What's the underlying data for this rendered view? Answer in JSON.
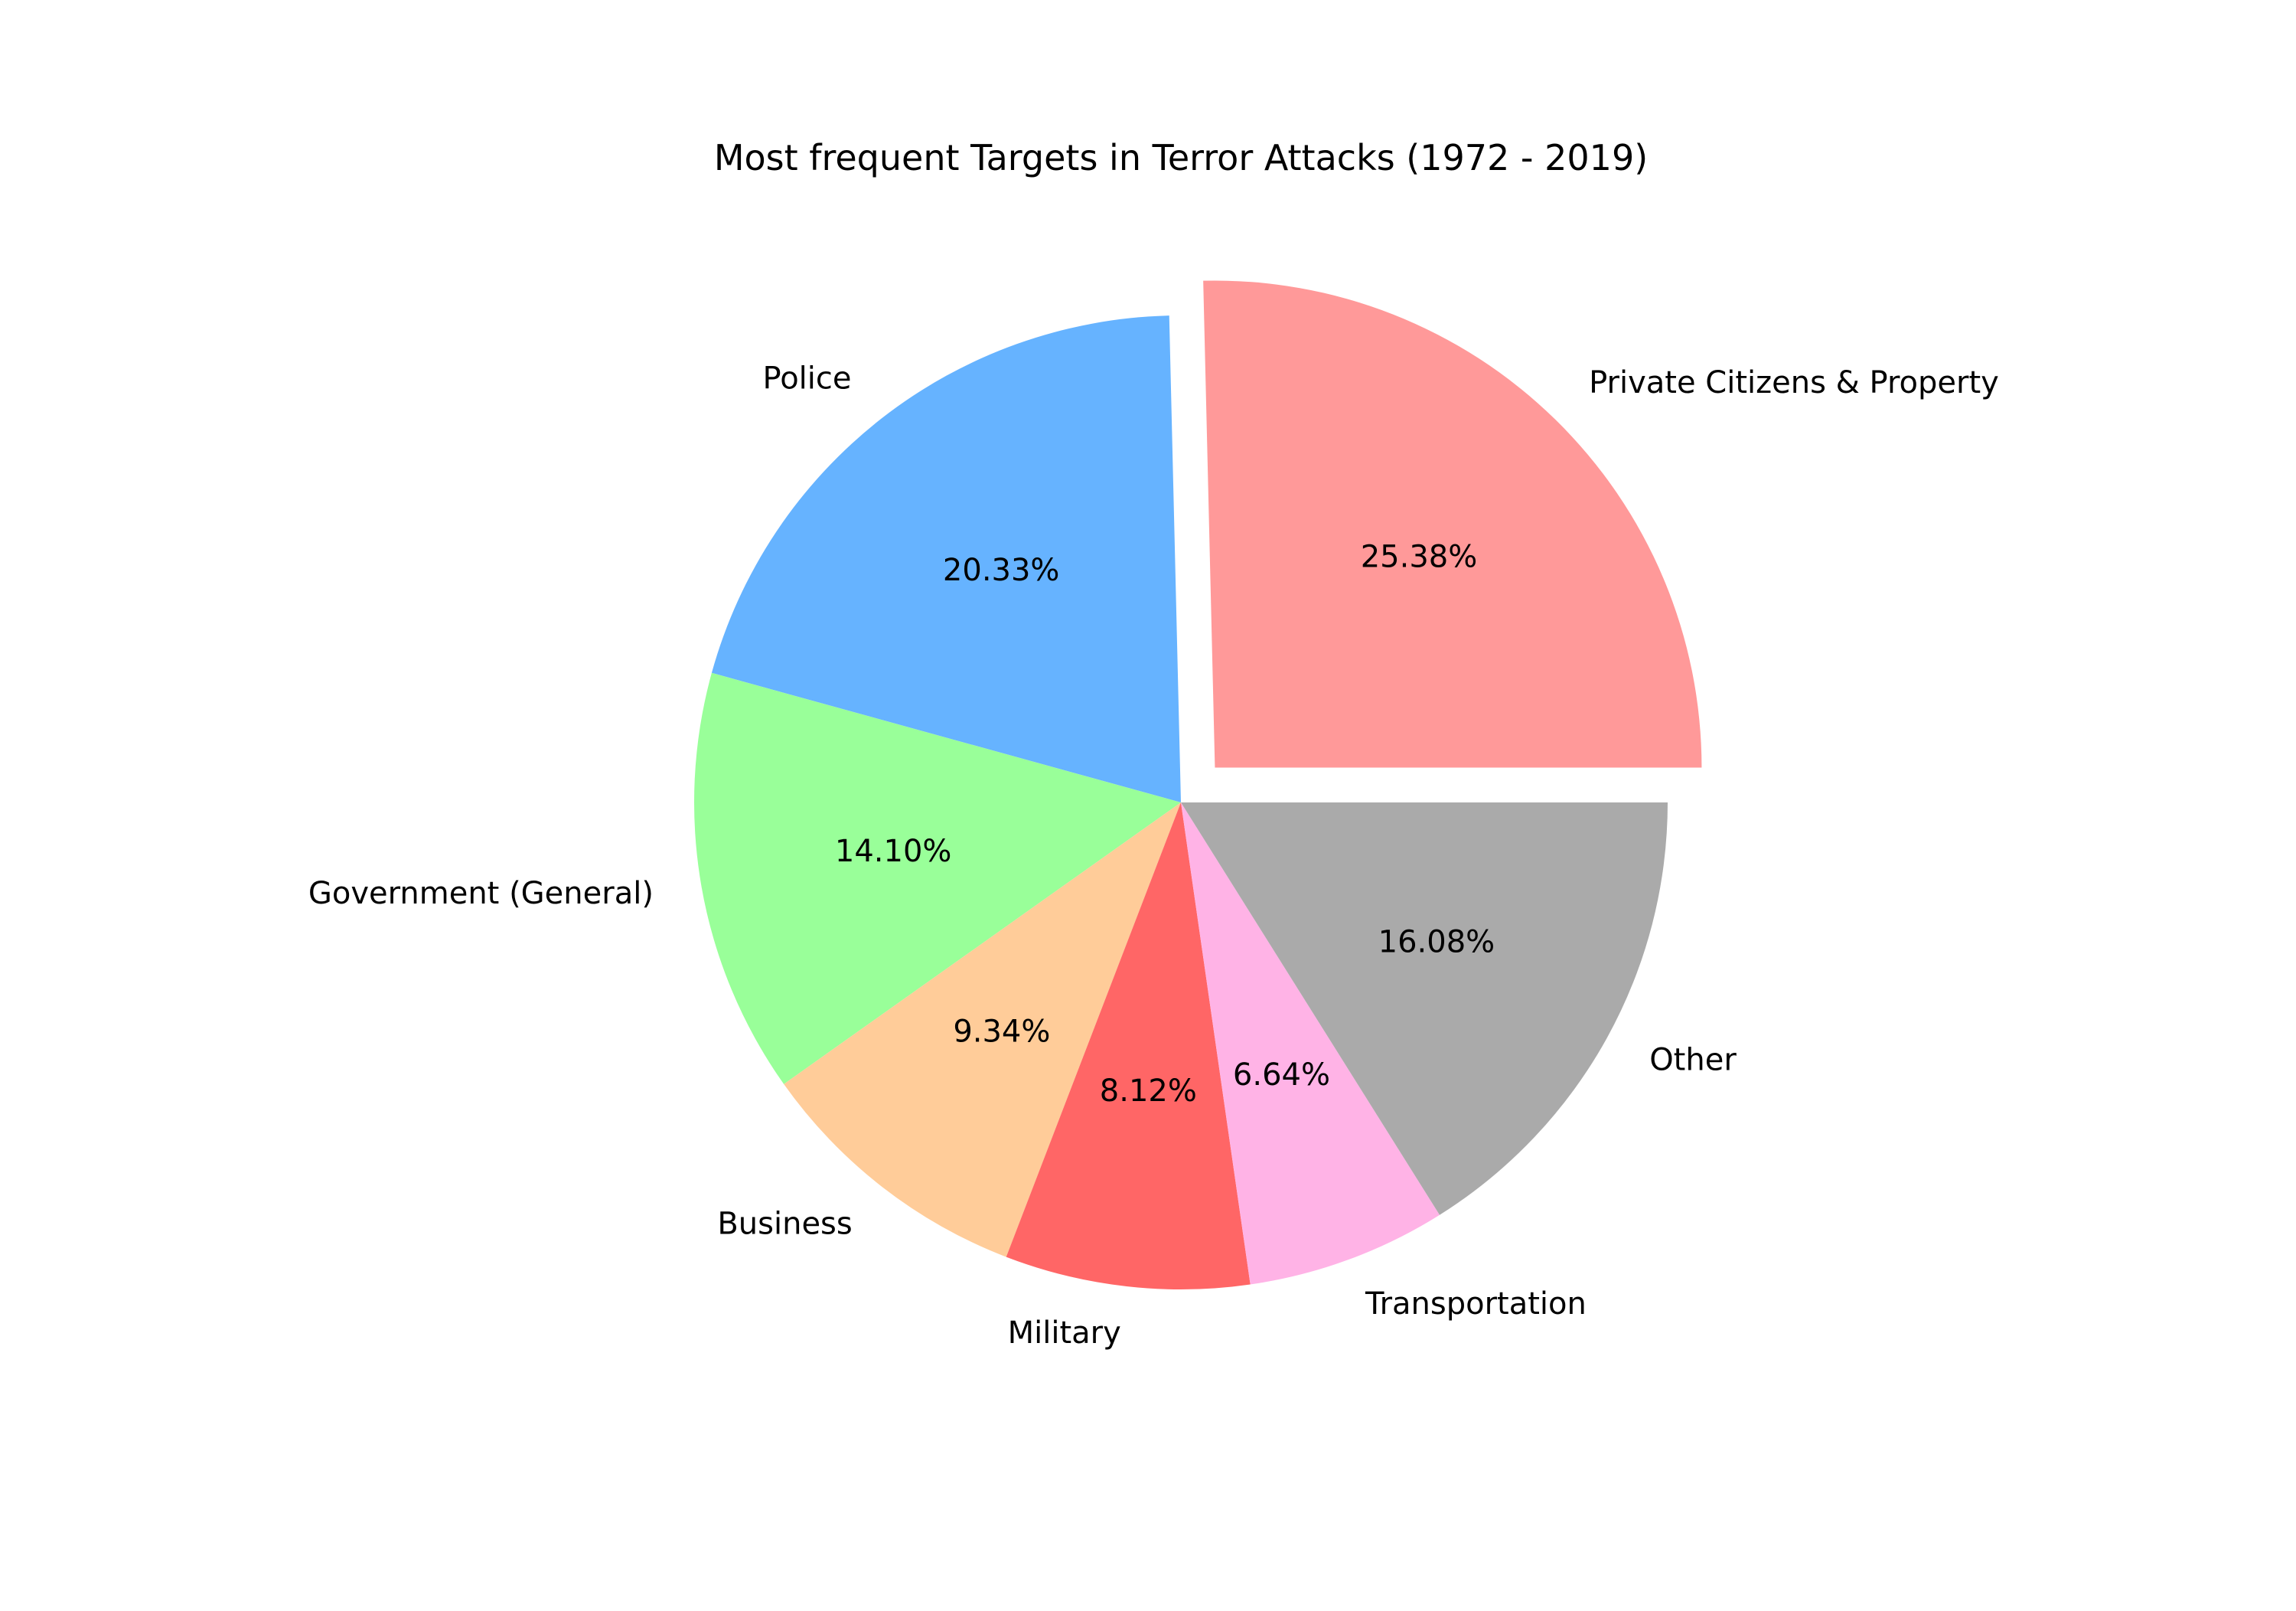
{
  "chart_data": {
    "type": "pie",
    "title": "Most frequent Targets in Terror Attacks (1972 - 2019)",
    "start_angle_deg": 0,
    "direction": "counterclockwise",
    "slices": [
      {
        "label": "Private Citizens & Property",
        "value": 25.38,
        "pct_label": "25.38%",
        "color": "#ff9999",
        "exploded": true
      },
      {
        "label": "Police",
        "value": 20.33,
        "pct_label": "20.33%",
        "color": "#66b3ff",
        "exploded": false
      },
      {
        "label": "Government (General)",
        "value": 14.1,
        "pct_label": "14.10%",
        "color": "#99ff99",
        "exploded": false
      },
      {
        "label": "Business",
        "value": 9.34,
        "pct_label": "9.34%",
        "color": "#ffcc99",
        "exploded": false
      },
      {
        "label": "Military",
        "value": 8.12,
        "pct_label": "8.12%",
        "color": "#ff6666",
        "exploded": false
      },
      {
        "label": "Transportation",
        "value": 6.64,
        "pct_label": "6.64%",
        "color": "#ffb3e6",
        "exploded": false
      },
      {
        "label": "Other",
        "value": 16.08,
        "pct_label": "16.08%",
        "color": "#aaaaaa",
        "exploded": false
      }
    ]
  }
}
